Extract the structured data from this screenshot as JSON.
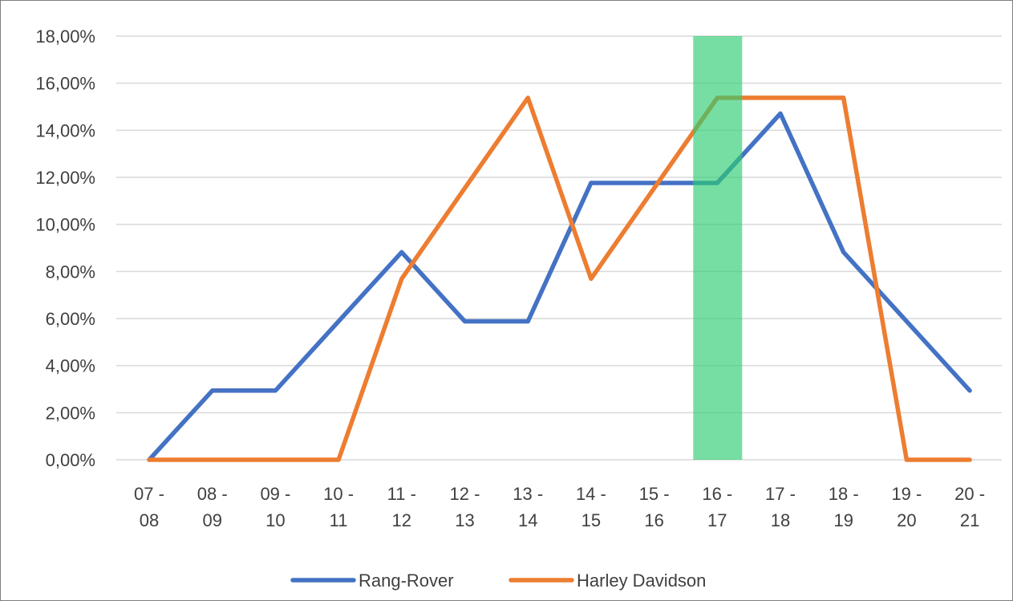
{
  "chart_data": {
    "type": "line",
    "categories": [
      "07 - 08",
      "08 - 09",
      "09 - 10",
      "10 - 11",
      "11 - 12",
      "12 - 13",
      "13 - 14",
      "14 - 15",
      "15 - 16",
      "16 - 17",
      "17 - 18",
      "18 - 19",
      "19 - 20",
      "20 - 21"
    ],
    "series": [
      {
        "name": "Rang-Rover",
        "color": "#4472c4",
        "values": [
          0.0,
          2.94,
          2.94,
          5.88,
          8.82,
          5.88,
          5.88,
          11.76,
          11.76,
          11.76,
          14.71,
          8.82,
          5.88,
          2.94
        ]
      },
      {
        "name": "Harley Davidson",
        "color": "#ed7d31",
        "values": [
          0.0,
          0.0,
          0.0,
          0.0,
          7.69,
          11.54,
          15.38,
          7.69,
          11.54,
          15.38,
          15.38,
          15.38,
          0.0,
          0.0
        ]
      }
    ],
    "y_ticks": [
      "0,00%",
      "2,00%",
      "4,00%",
      "6,00%",
      "8,00%",
      "10,00%",
      "12,00%",
      "14,00%",
      "16,00%",
      "18,00%"
    ],
    "ylim": [
      0,
      18
    ],
    "grid": true,
    "legend": "bottom",
    "highlight": {
      "category": "16 - 17",
      "color": "#2ecc71"
    },
    "title": "",
    "xlabel": "",
    "ylabel": ""
  }
}
